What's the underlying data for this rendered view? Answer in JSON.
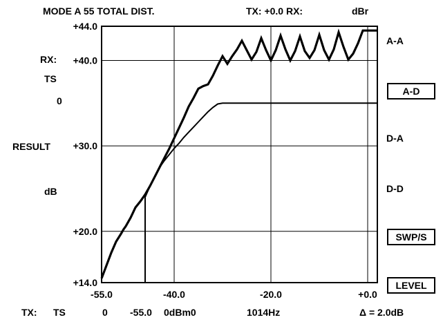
{
  "header": {
    "mode": "MODE A 55 TOTAL DIST.",
    "tx_rx": "TX: +0.0 RX:",
    "unit": "dBr"
  },
  "left_panel": {
    "rx_label": "RX:",
    "ts_label": "TS",
    "ts_value": "0",
    "result_label": "RESULT",
    "db_label": "dB"
  },
  "right_panel": {
    "items": [
      {
        "label": "A-A",
        "boxed": false
      },
      {
        "label": "A-D",
        "boxed": true
      },
      {
        "label": "D-A",
        "boxed": false
      },
      {
        "label": "D-D",
        "boxed": false
      },
      {
        "label": "SWP/S",
        "boxed": true
      },
      {
        "label": "LEVEL",
        "boxed": true
      }
    ]
  },
  "footer": {
    "tx_label": "TX:",
    "ts_label": "TS",
    "ts_value": "0",
    "level": "-55.0",
    "level_unit": "0dBm0",
    "frequency": "1014Hz",
    "delta": "Δ = 2.0dB"
  },
  "colors": {
    "background": "#ffffff",
    "foreground": "#000000"
  },
  "chart_data": {
    "type": "line",
    "title": "",
    "xlabel": "",
    "ylabel": "",
    "xlim": [
      -55.0,
      2.0
    ],
    "ylim": [
      14.0,
      44.0
    ],
    "y_ticks": [
      {
        "value": 44.0,
        "label": "+44.0"
      },
      {
        "value": 40.0,
        "label": "+40.0"
      },
      {
        "value": 30.0,
        "label": "+30.0"
      },
      {
        "value": 20.0,
        "label": "+20.0"
      },
      {
        "value": 14.0,
        "label": "+14.0"
      }
    ],
    "x_ticks": [
      {
        "value": -55.0,
        "label": "-55.0"
      },
      {
        "value": -40.0,
        "label": "-40.0"
      },
      {
        "value": -20.0,
        "label": "-20.0"
      },
      {
        "value": 0.0,
        "label": "+0.0"
      }
    ],
    "grid": true,
    "gridlines_x": [
      -40.0,
      -20.0,
      0.0
    ],
    "gridlines_y": [
      40.0,
      30.0,
      20.0
    ],
    "series": [
      {
        "style": "thick",
        "x": [
          -55.0,
          -54.0,
          -53.0,
          -52.0,
          -51.0,
          -50.5,
          -50.0,
          -49.0,
          -48.0,
          -47.0,
          -46.0,
          -45.0,
          -44.0,
          -43.0,
          -42.0,
          -41.0,
          -40.0,
          -39.0,
          -38.0,
          -37.0,
          -36.0,
          -35.0,
          -34.0,
          -33.0,
          -32.0,
          -31.0,
          -30.0,
          -29.0,
          -28.0,
          -27.0,
          -26.0,
          -25.0,
          -24.0,
          -23.0,
          -22.0,
          -21.0,
          -20.0,
          -19.0,
          -18.0,
          -17.0,
          -16.0,
          -15.0,
          -14.0,
          -13.0,
          -12.0,
          -11.0,
          -10.0,
          -9.0,
          -8.0,
          -7.0,
          -6.0,
          -5.0,
          -4.0,
          -3.0,
          -2.0,
          -1.0,
          0.0,
          1.0,
          2.0
        ],
        "y": [
          14.5,
          16.0,
          17.5,
          18.8,
          19.7,
          20.2,
          20.6,
          21.6,
          22.8,
          23.5,
          24.3,
          25.3,
          26.4,
          27.5,
          28.6,
          29.7,
          30.9,
          32.1,
          33.3,
          34.6,
          35.6,
          36.7,
          37.0,
          37.2,
          38.2,
          39.4,
          40.5,
          39.6,
          40.5,
          41.3,
          42.3,
          41.2,
          40.1,
          41.0,
          42.6,
          41.2,
          40.0,
          41.2,
          42.9,
          41.3,
          40.0,
          41.1,
          42.8,
          41.1,
          40.3,
          41.2,
          43.0,
          41.2,
          40.1,
          41.3,
          43.3,
          41.6,
          40.1,
          40.8,
          42.0,
          43.5,
          43.5,
          43.5,
          43.5
        ]
      },
      {
        "style": "thin",
        "x": [
          -46.0,
          -45.0,
          -44.0,
          -43.0,
          -42.0,
          -41.0,
          -40.0,
          -39.0,
          -38.0,
          -37.0,
          -36.0,
          -35.0,
          -34.0,
          -33.0,
          -32.0,
          -31.0,
          -30.0,
          2.0
        ],
        "y": [
          24.0,
          25.3,
          26.4,
          27.5,
          28.3,
          29.0,
          29.7,
          30.3,
          31.0,
          31.6,
          32.2,
          32.8,
          33.4,
          34.0,
          34.5,
          34.9,
          35.0,
          35.0
        ]
      }
    ],
    "vertical_markers": [
      {
        "x": -46.0,
        "y_from": 14.0,
        "y_to": 24.0
      }
    ]
  }
}
